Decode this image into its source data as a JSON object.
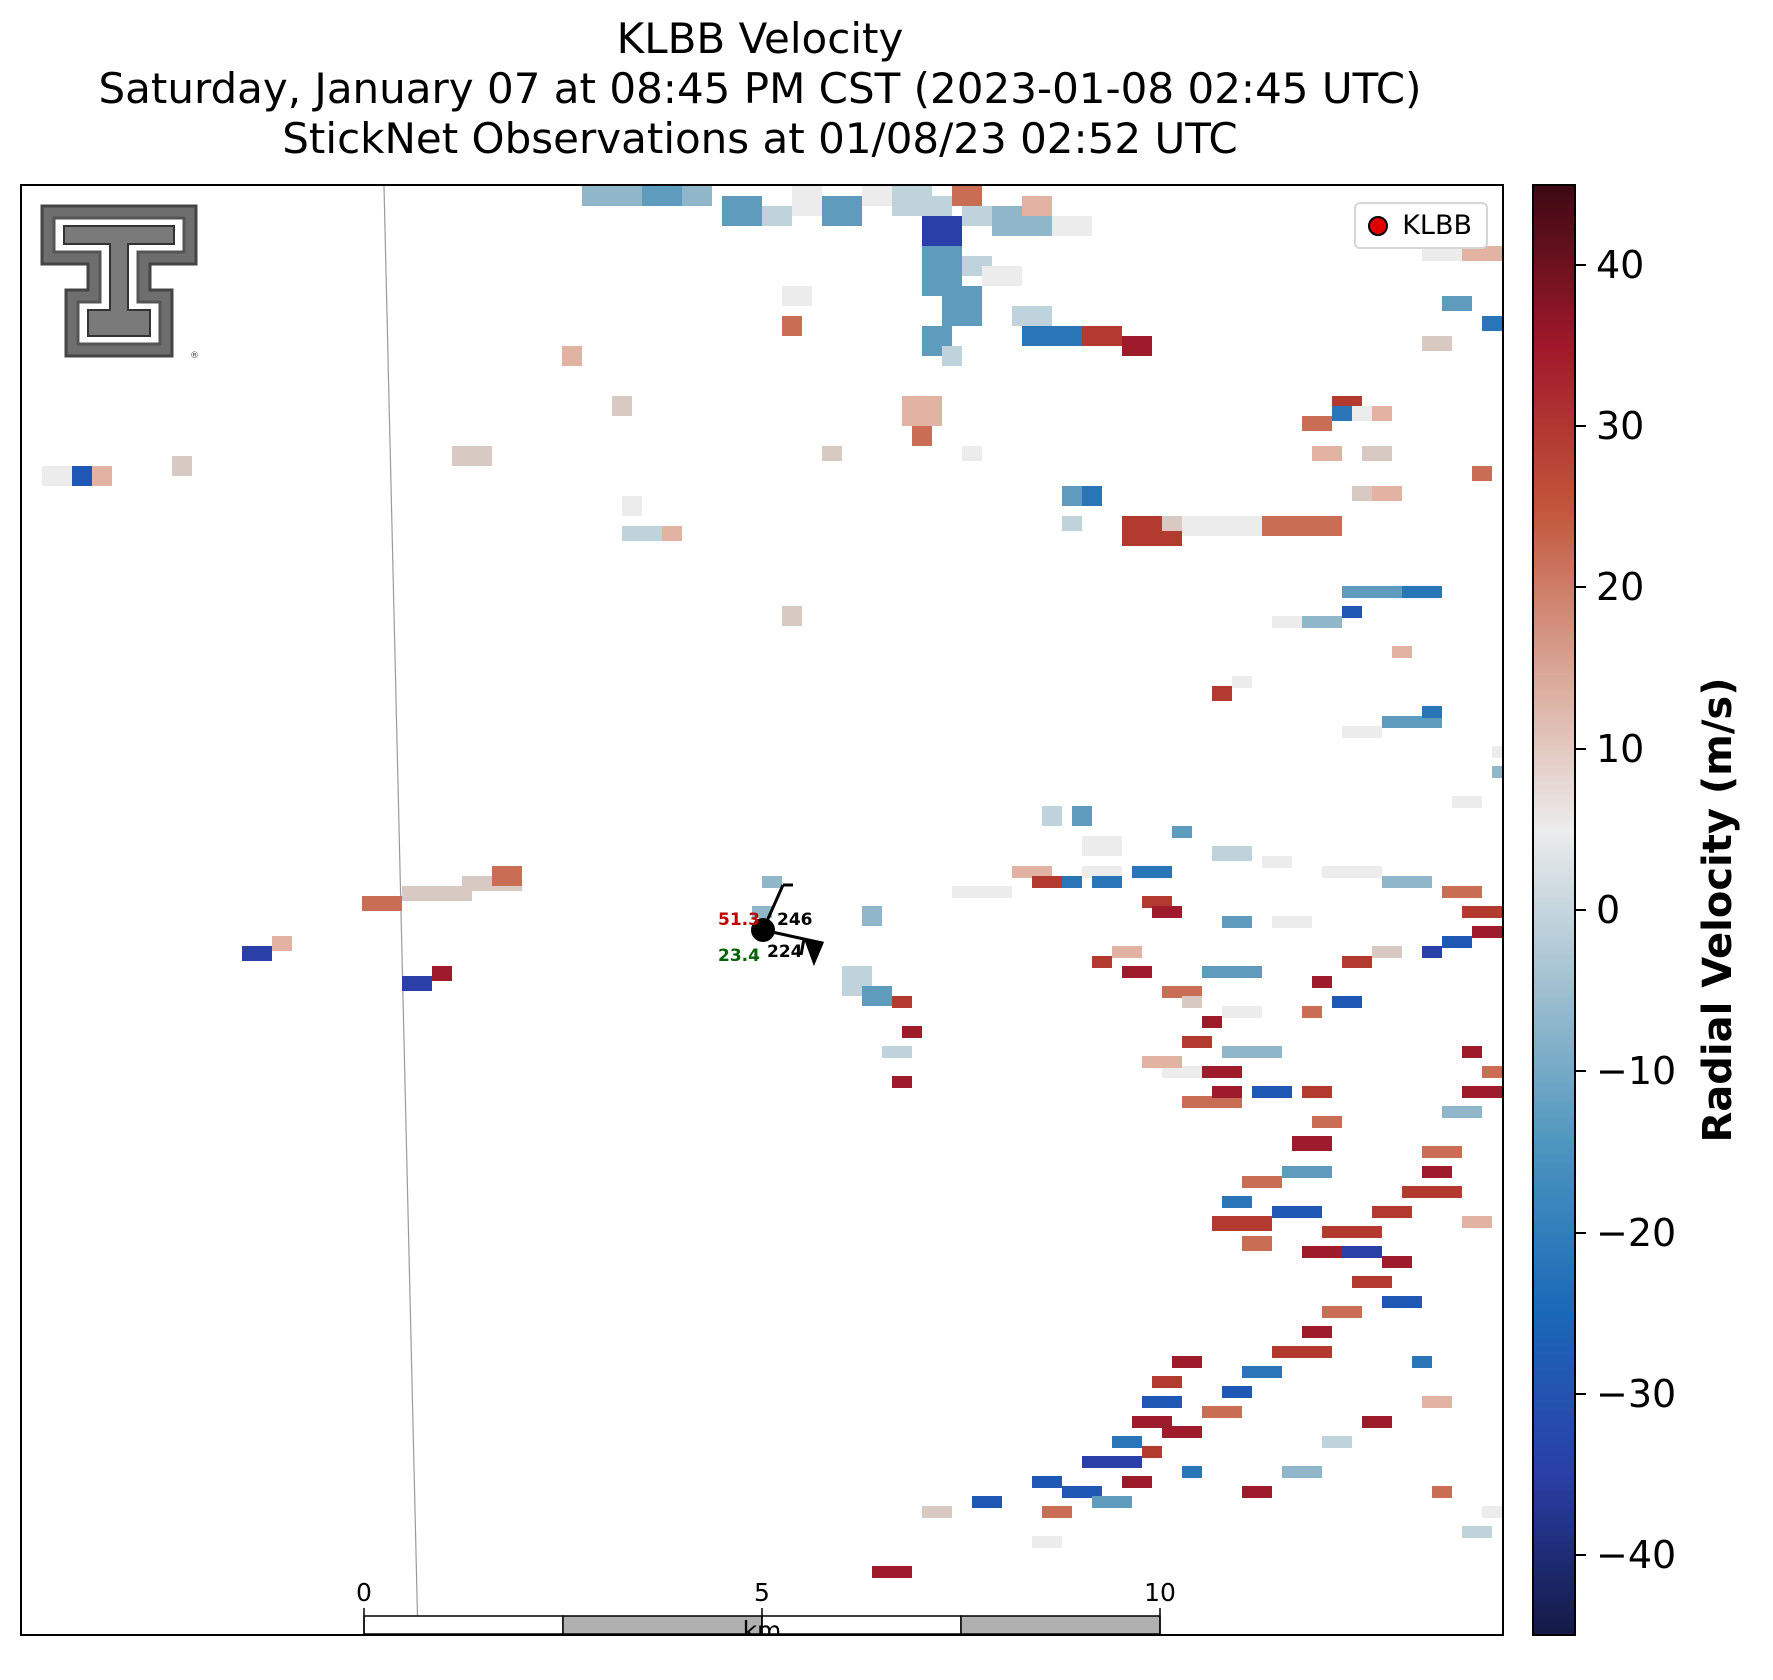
{
  "title": {
    "line1": "KLBB Velocity",
    "line2": "Saturday, January 07 at 08:45 PM CST (2023-01-08 02:45 UTC)",
    "line3": "StickNet Observations at 01/08/23 02:52 UTC"
  },
  "legend": {
    "label": "KLBB",
    "marker_color": "#e00000"
  },
  "logo": {
    "name": "Texas Tech Double T logo"
  },
  "station": {
    "temperature": "51.3",
    "dewpoint": "23.4",
    "pressure": "246",
    "wind_direction": "224",
    "temp_color": "#c00000",
    "dew_color": "#006400"
  },
  "scale_bar": {
    "ticks": [
      "0",
      "5",
      "10"
    ],
    "unit": "km"
  },
  "colorbar": {
    "title": "Radial Velocity (m/s)",
    "ticks": [
      "40",
      "30",
      "20",
      "10",
      "0",
      "−10",
      "−20",
      "−30",
      "−40"
    ],
    "tick_values": [
      40,
      30,
      20,
      10,
      0,
      -10,
      -20,
      -30,
      -40
    ],
    "range": [
      -45,
      45
    ],
    "stops": [
      "#141a45",
      "#2a3fa8",
      "#1a68b8",
      "#4a94be",
      "#9fbfcf",
      "#ececec",
      "#d9a595",
      "#c2553a",
      "#a0182a",
      "#3d0a14"
    ]
  }
}
